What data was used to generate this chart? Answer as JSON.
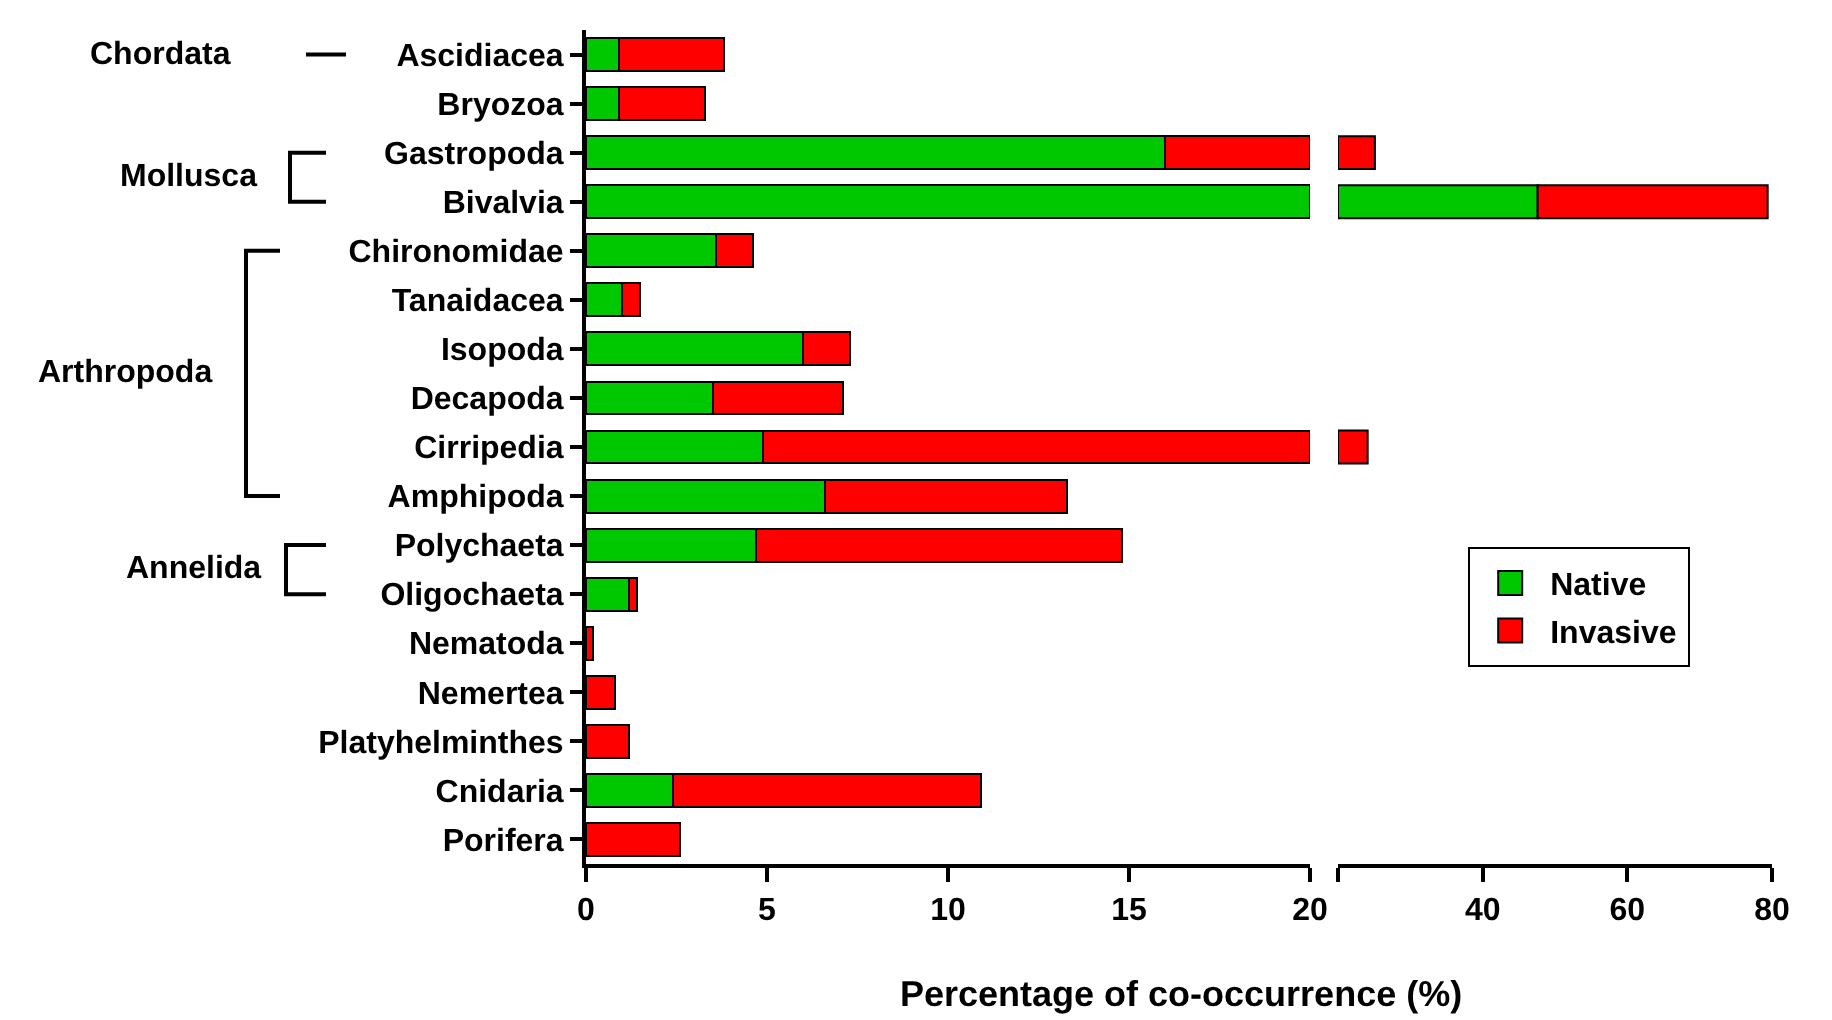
{
  "chart_data": [
    {
      "type": "bar",
      "orientation": "horizontal",
      "stacked": true,
      "xlabel": "Percentage of co-occurrence (%)",
      "categories": [
        "Ascidiacea",
        "Bryozoa",
        "Gastropoda",
        "Bivalvia",
        "Chironomidae",
        "Tanaidacea",
        "Isopoda",
        "Decapoda",
        "Cirripedia",
        "Amphipoda",
        "Polychaeta",
        "Oligochaeta",
        "Nematoda",
        "Nemertea",
        "Platyhelminthes",
        "Cnidaria",
        "Porifera"
      ],
      "series": [
        {
          "color": "#00c800",
          "values": [
            0.9,
            0.9,
            16.0,
            20,
            3.6,
            1.0,
            6.0,
            3.5,
            4.9,
            6.6,
            4.7,
            1.2,
            0,
            0,
            0,
            2.4,
            0
          ]
        },
        {
          "color": "#ff0000",
          "values": [
            2.9,
            2.4,
            4.0,
            null,
            1.0,
            0.5,
            1.3,
            3.6,
            15.1,
            6.7,
            10.1,
            0.2,
            0.2,
            0.8,
            1.2,
            8.5,
            2.6
          ]
        }
      ],
      "xlim": [
        0,
        20
      ],
      "xticks": [
        0,
        5,
        10,
        15,
        20
      ],
      "grid": false,
      "legend": false,
      "annotations": [
        "Chordata",
        "Mollusca",
        "Arthropoda",
        "Annelida"
      ]
    },
    {
      "type": "bar",
      "orientation": "horizontal",
      "categories": [
        null,
        null,
        null,
        null,
        null,
        null,
        null,
        null,
        null,
        null,
        null,
        null,
        null,
        null,
        null,
        null,
        null
      ],
      "series": [
        {
          "name": "Native",
          "color": "#00c800",
          "values": [
            null,
            null,
            null,
            27.6,
            null,
            null,
            null,
            null,
            null,
            null,
            null,
            null,
            null,
            null,
            null,
            null,
            null
          ],
          "base": [
            null,
            null,
            null,
            20,
            null,
            null,
            null,
            null,
            null,
            null,
            null,
            null,
            null,
            null,
            null,
            null,
            null
          ]
        },
        {
          "name": "Invasive",
          "color": "#ff0000",
          "values": [
            null,
            null,
            5.1,
            31.8,
            null,
            null,
            null,
            null,
            4.1,
            null,
            null,
            null,
            null,
            null,
            null,
            null,
            null
          ],
          "base": [
            null,
            null,
            20,
            47.6,
            null,
            null,
            null,
            null,
            20,
            null,
            null,
            null,
            null,
            null,
            null,
            null,
            null
          ]
        }
      ],
      "xlim": [
        20,
        80
      ],
      "xticks": [
        {
          "value": 20,
          "label": null
        },
        40,
        60,
        80
      ],
      "grid": false,
      "legend": "right",
      "tick_labels": "x"
    }
  ]
}
